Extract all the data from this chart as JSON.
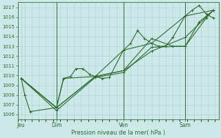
{
  "xlabel": "Pression niveau de la mer( hPa )",
  "bg_color": "#cce8e8",
  "grid_color": "#b0d4d4",
  "line_color": "#2d6a2d",
  "ylim": [
    1005.5,
    1017.5
  ],
  "xlim": [
    0,
    114
  ],
  "yticks": [
    1006,
    1007,
    1008,
    1009,
    1010,
    1011,
    1012,
    1013,
    1014,
    1015,
    1016,
    1017
  ],
  "day_positions": [
    2,
    22,
    60,
    95
  ],
  "day_labels": [
    "Jeu",
    "Dim",
    "Ven",
    "Sam"
  ],
  "vline_positions": [
    22,
    60,
    95
  ],
  "series": [
    {
      "x": [
        2,
        4,
        7,
        22,
        26,
        30,
        33,
        37,
        41,
        44,
        48,
        52,
        60,
        64,
        68,
        72,
        76,
        80,
        84,
        88,
        95,
        99,
        103,
        107,
        111
      ],
      "y": [
        1009.7,
        1008.0,
        1006.3,
        1006.7,
        1009.7,
        1009.9,
        1010.7,
        1010.7,
        1010.1,
        1009.9,
        1009.7,
        1009.8,
        1012.6,
        1013.3,
        1014.6,
        1013.8,
        1013.3,
        1013.0,
        1013.0,
        1013.9,
        1016.1,
        1016.7,
        1017.2,
        1016.3,
        1015.9
      ]
    },
    {
      "x": [
        2,
        22,
        26,
        44,
        60,
        76,
        95,
        111
      ],
      "y": [
        1009.7,
        1006.7,
        1009.7,
        1009.9,
        1012.6,
        1013.3,
        1016.1,
        1016.7
      ]
    },
    {
      "x": [
        2,
        22,
        44,
        60,
        76,
        95,
        111
      ],
      "y": [
        1009.7,
        1006.7,
        1009.9,
        1010.5,
        1012.5,
        1013.9,
        1016.7
      ]
    },
    {
      "x": [
        2,
        22,
        44,
        60,
        76,
        88,
        95,
        107,
        111
      ],
      "y": [
        1009.7,
        1006.7,
        1009.9,
        1010.5,
        1013.8,
        1013.0,
        1013.0,
        1015.9,
        1016.7
      ]
    },
    {
      "x": [
        2,
        22,
        44,
        60,
        76,
        95,
        103,
        111
      ],
      "y": [
        1009.7,
        1006.4,
        1009.8,
        1010.3,
        1012.9,
        1013.0,
        1015.5,
        1016.7
      ]
    }
  ]
}
